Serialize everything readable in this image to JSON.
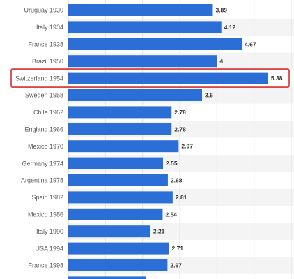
{
  "chart_data": {
    "type": "bar",
    "orientation": "horizontal",
    "categories": [
      "Uruguay 1930",
      "Italy 1934",
      "France 1938",
      "Brazil 1950",
      "Switzerland 1954",
      "Sweden 1958",
      "Chile 1962",
      "England 1966",
      "Mexico 1970",
      "Germany 1974",
      "Argentina 1978",
      "Spain 1982",
      "Mexico 1986",
      "Italy 1990",
      "USA 1994",
      "France 1998"
    ],
    "values": [
      3.89,
      4.12,
      4.67,
      4,
      5.38,
      3.6,
      2.78,
      2.78,
      2.97,
      2.55,
      2.68,
      2.81,
      2.54,
      2.21,
      2.71,
      2.67
    ],
    "value_labels": [
      "3.89",
      "4.12",
      "4.67",
      "4",
      "5.38",
      "3.6",
      "2.78",
      "2.78",
      "2.97",
      "2.55",
      "2.68",
      "2.81",
      "2.54",
      "2.21",
      "2.71",
      "2.67"
    ],
    "highlighted": "Switzerland 1954",
    "xlim": [
      0,
      6
    ],
    "grid": true,
    "colors": {
      "bar": "#2b6fd6",
      "highlight_border": "#d32f2f",
      "grid": "#e4e4e4",
      "stripe": "#f4f4f4"
    }
  }
}
